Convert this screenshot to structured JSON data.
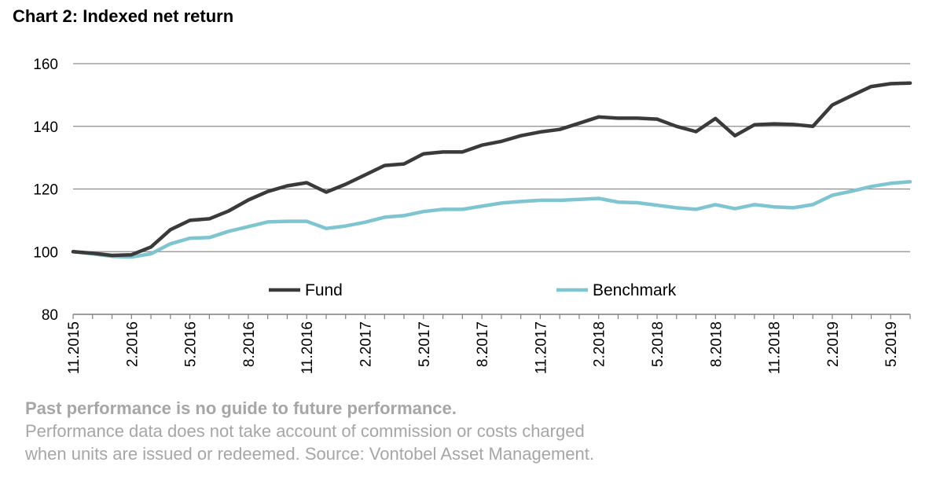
{
  "colors": {
    "fund": "#3a3a3a",
    "benchmark": "#7fc4d1",
    "grid": "#8c8c8c",
    "axis": "#7f7f7f"
  },
  "footnote": {
    "bold": "Past performance is no guide to future performance.",
    "line2": "Performance data does not take account of commission or costs charged",
    "line3": "when units are issued or redeemed. Source: Vontobel Asset Management."
  },
  "chart_data": {
    "type": "line",
    "title": "Chart 2: Indexed net return",
    "ylim": [
      80,
      160
    ],
    "yticks": [
      80,
      100,
      120,
      140,
      160
    ],
    "grid": true,
    "legend_position": "inside-bottom",
    "x": [
      "11.2015",
      "12.2015",
      "1.2016",
      "2.2016",
      "3.2016",
      "4.2016",
      "5.2016",
      "6.2016",
      "7.2016",
      "8.2016",
      "9.2016",
      "10.2016",
      "11.2016",
      "12.2016",
      "1.2017",
      "2.2017",
      "3.2017",
      "4.2017",
      "5.2017",
      "6.2017",
      "7.2017",
      "8.2017",
      "9.2017",
      "10.2017",
      "11.2017",
      "12.2017",
      "1.2018",
      "2.2018",
      "3.2018",
      "4.2018",
      "5.2018",
      "6.2018",
      "7.2018",
      "8.2018",
      "9.2018",
      "10.2018",
      "11.2018",
      "12.2018",
      "1.2019",
      "2.2019",
      "3.2019",
      "4.2019",
      "5.2019",
      "6.2019"
    ],
    "xtick_labels": [
      "11.2015",
      "2.2016",
      "5.2016",
      "8.2016",
      "11.2016",
      "2.2017",
      "5.2017",
      "8.2017",
      "11.2017",
      "2.2018",
      "5.2018",
      "8.2018",
      "11.2018",
      "2.2019",
      "5.2019"
    ],
    "xtick_every": 3,
    "series": [
      {
        "name": "Fund",
        "color_key": "fund",
        "values": [
          100,
          99.5,
          98.8,
          99,
          101.5,
          107,
          110,
          110.5,
          113,
          116.5,
          119.2,
          121,
          122,
          119,
          121.5,
          124.5,
          127.5,
          128,
          131.2,
          131.8,
          131.8,
          134,
          135.2,
          137,
          138.2,
          139,
          141,
          143,
          142.6,
          142.6,
          142.3,
          140,
          138.3,
          142.5,
          137,
          140.5,
          140.8,
          140.6,
          140,
          146.8,
          149.8,
          152.7,
          153.6,
          153.8
        ]
      },
      {
        "name": "Benchmark",
        "color_key": "benchmark",
        "values": [
          100,
          99.3,
          98.5,
          98.3,
          99.3,
          102.5,
          104.3,
          104.5,
          106.5,
          108,
          109.5,
          109.7,
          109.7,
          107.4,
          108.2,
          109.4,
          111,
          111.5,
          112.8,
          113.5,
          113.5,
          114.5,
          115.5,
          116,
          116.4,
          116.4,
          116.7,
          117,
          115.8,
          115.6,
          114.8,
          114,
          113.5,
          115,
          113.7,
          115,
          114.3,
          114,
          115,
          118,
          119.3,
          120.8,
          121.8,
          122.3
        ]
      }
    ]
  }
}
